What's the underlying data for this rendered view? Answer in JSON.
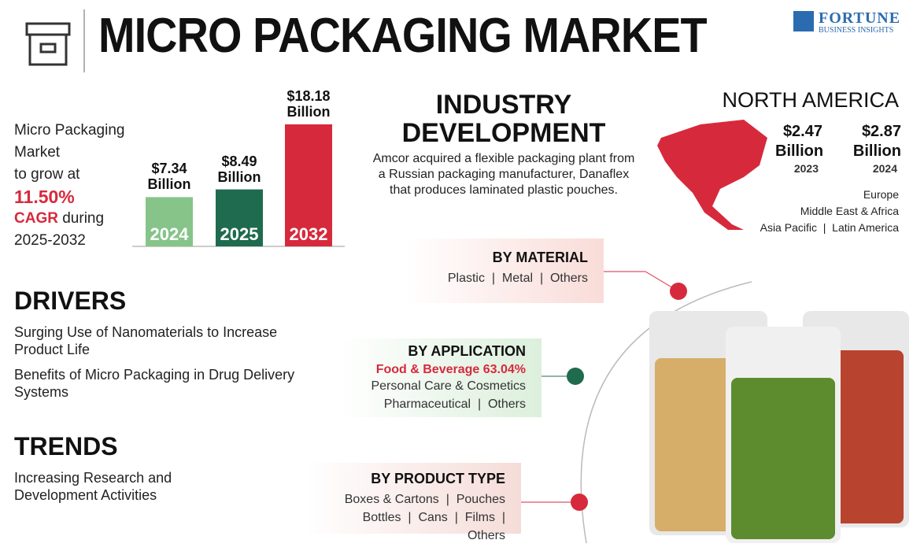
{
  "header": {
    "title": "MICRO PACKAGING MARKET",
    "brand": "FORTUNE",
    "brand_sub": "BUSINESS INSIGHTS"
  },
  "growth": {
    "lines": [
      "Micro Packaging",
      "Market",
      "to grow at"
    ],
    "cagr": "11.50%",
    "cagr_label": "CAGR",
    "during": "during",
    "period": "2025-2032"
  },
  "chart_data": {
    "type": "bar",
    "categories": [
      "2024",
      "2025",
      "2032"
    ],
    "values": [
      7.34,
      8.49,
      18.18
    ],
    "value_labels": [
      "$7.34 Billion",
      "$8.49 Billion",
      "$18.18 Billion"
    ],
    "colors": [
      "#86c48a",
      "#1f6b4f",
      "#d62a3c"
    ]
  },
  "industry": {
    "title": "INDUSTRY DEVELOPMENT",
    "text": "Amcor acquired a flexible packaging plant from a Russian packaging manufacturer, Danaflex that produces laminated plastic pouches."
  },
  "region": {
    "title": "NORTH AMERICA",
    "values": [
      {
        "amount": "$2.47 Billion",
        "year": "2023"
      },
      {
        "amount": "$2.87 Billion",
        "year": "2024"
      }
    ],
    "others": [
      [
        "Europe"
      ],
      [
        "Middle East & Africa"
      ],
      [
        "Asia Pacific",
        "Latin America"
      ]
    ]
  },
  "drivers": {
    "title": "DRIVERS",
    "items": [
      "Surging Use of Nanomaterials to Increase Product Life",
      "Benefits of Micro Packaging in Drug Delivery Systems"
    ]
  },
  "trends": {
    "title": "TRENDS",
    "items": [
      "Increasing Research and Development Activities"
    ]
  },
  "segments": [
    {
      "title": "BY MATERIAL",
      "rows": [
        [
          "Plastic",
          "Metal",
          "Others"
        ]
      ]
    },
    {
      "title": "BY APPLICATION",
      "highlight": "Food & Beverage 63.04%",
      "rows": [
        [
          "Personal Care & Cosmetics"
        ],
        [
          "Pharmaceutical",
          "Others"
        ]
      ]
    },
    {
      "title": "BY PRODUCT TYPE",
      "rows": [
        [
          "Boxes & Cartons",
          "Pouches"
        ],
        [
          "Bottles",
          "Cans",
          "Films",
          "Others"
        ]
      ]
    }
  ]
}
